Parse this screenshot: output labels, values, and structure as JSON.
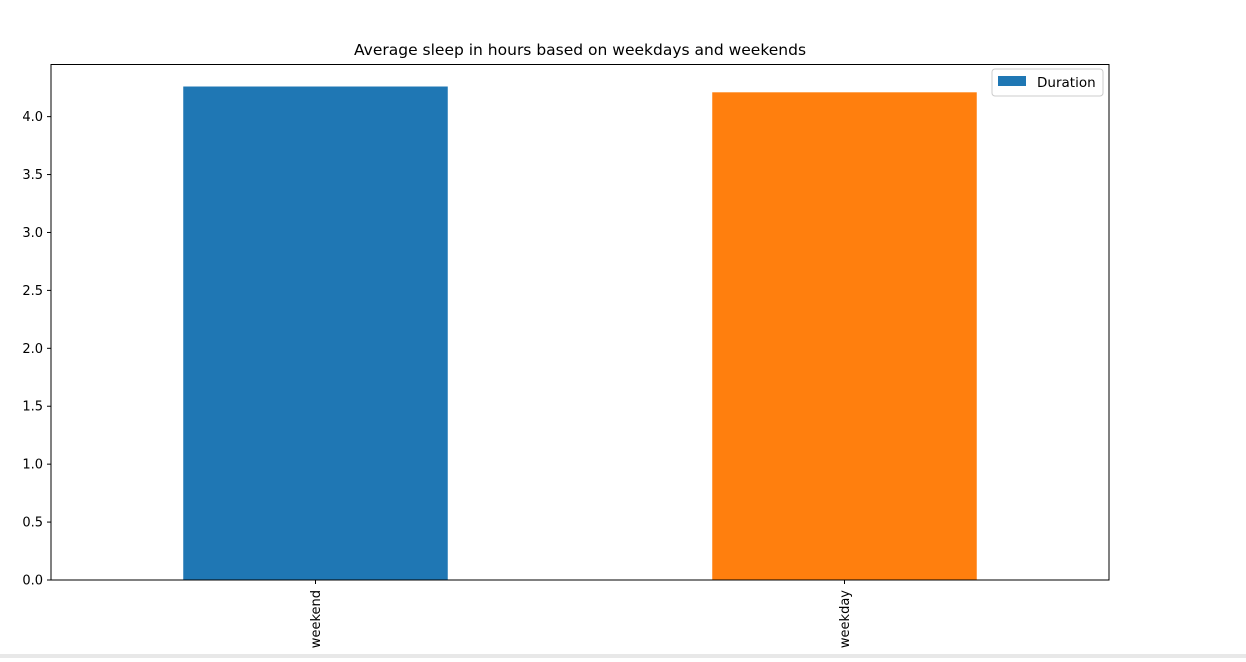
{
  "chart_data": {
    "type": "bar",
    "title": "Average sleep in hours based on weekdays and weekends",
    "categories": [
      "weekend",
      "weekday"
    ],
    "series": [
      {
        "name": "Duration",
        "values": [
          4.26,
          4.21
        ],
        "colors": [
          "#1f77b4",
          "#ff7f0e"
        ]
      }
    ],
    "xlabel": "",
    "ylabel": "",
    "ylim": [
      0,
      4.45
    ],
    "yticks": [
      "0.0",
      "0.5",
      "1.0",
      "1.5",
      "2.0",
      "2.5",
      "3.0",
      "3.5",
      "4.0"
    ],
    "grid": false,
    "legend_position": "top-right",
    "legend_swatch_color": "#1f77b4"
  }
}
